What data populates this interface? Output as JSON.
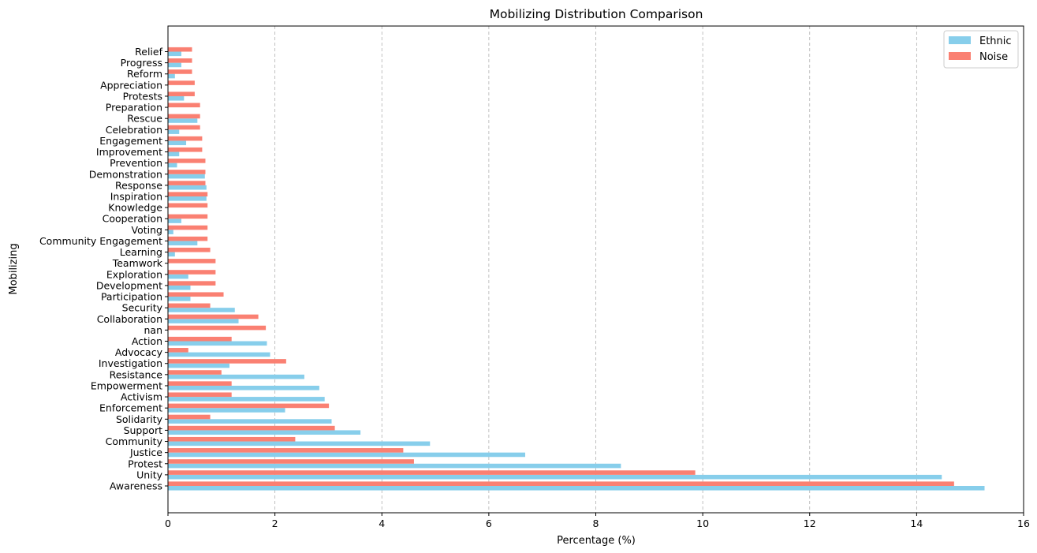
{
  "chart_data": {
    "type": "bar",
    "orientation": "horizontal",
    "title": "Mobilizing Distribution Comparison",
    "xlabel": "Percentage (%)",
    "ylabel": "Mobilizing",
    "xlim": [
      0,
      16
    ],
    "xticks": [
      "0",
      "2",
      "4",
      "6",
      "8",
      "10",
      "12",
      "14",
      "16"
    ],
    "grid": "x dashed",
    "legend_position": "top-right",
    "categories": [
      "Awareness",
      "Unity",
      "Protest",
      "Justice",
      "Community",
      "Support",
      "Solidarity",
      "Enforcement",
      "Activism",
      "Empowerment",
      "Resistance",
      "Investigation",
      "Advocacy",
      "Action",
      "nan",
      "Collaboration",
      "Security",
      "Participation",
      "Development",
      "Exploration",
      "Teamwork",
      "Learning",
      "Community Engagement",
      "Voting",
      "Cooperation",
      "Knowledge",
      "Inspiration",
      "Response",
      "Demonstration",
      "Prevention",
      "Improvement",
      "Engagement",
      "Celebration",
      "Rescue",
      "Preparation",
      "Protests",
      "Appreciation",
      "Reform",
      "Progress",
      "Relief"
    ],
    "series": [
      {
        "name": "Ethnic",
        "color": "#87ceeb",
        "values": [
          15.27,
          14.47,
          8.47,
          6.68,
          4.9,
          3.6,
          3.06,
          2.19,
          2.93,
          2.83,
          2.55,
          1.15,
          1.91,
          1.85,
          0.0,
          1.32,
          1.25,
          0.42,
          0.42,
          0.38,
          0.0,
          0.13,
          0.55,
          0.1,
          0.25,
          0.0,
          0.72,
          0.72,
          0.69,
          0.17,
          0.21,
          0.34,
          0.21,
          0.55,
          0.0,
          0.3,
          0.0,
          0.13,
          0.25,
          0.25
        ]
      },
      {
        "name": "Noise",
        "color": "#fa8072",
        "values": [
          14.7,
          9.86,
          4.6,
          4.4,
          2.38,
          3.12,
          0.79,
          3.01,
          1.19,
          1.19,
          1.0,
          2.21,
          0.38,
          1.19,
          1.83,
          1.69,
          0.79,
          1.04,
          0.89,
          0.89,
          0.89,
          0.79,
          0.74,
          0.74,
          0.74,
          0.74,
          0.74,
          0.7,
          0.7,
          0.7,
          0.64,
          0.64,
          0.6,
          0.6,
          0.6,
          0.5,
          0.5,
          0.45,
          0.45,
          0.45
        ]
      }
    ]
  }
}
